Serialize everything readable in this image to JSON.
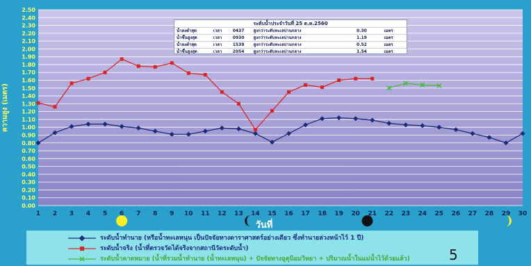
{
  "chart_data": {
    "type": "line",
    "title": "",
    "xlabel": "วันที่",
    "ylabel": "ความสูง (เมตร)",
    "ylim": [
      0,
      2.5
    ],
    "yticks": [
      "0.00",
      "0.10",
      "0.20",
      "0.30",
      "0.40",
      "0.50",
      "0.60",
      "0.70",
      "0.80",
      "0.90",
      "1.00",
      "1.10",
      "1.20",
      "1.30",
      "1.40",
      "1.50",
      "1.60",
      "1.70",
      "1.80",
      "1.90",
      "2.00",
      "2.10",
      "2.20",
      "2.30",
      "2.40",
      "2.50"
    ],
    "categories": [
      "1",
      "2",
      "3",
      "4",
      "5",
      "6",
      "7",
      "8",
      "9",
      "10",
      "11",
      "12",
      "13",
      "14",
      "15",
      "16",
      "17",
      "18",
      "19",
      "20",
      "21",
      "22",
      "23",
      "24",
      "25",
      "26",
      "27",
      "28",
      "29",
      "30"
    ],
    "grid": true,
    "legend_position": "bottom",
    "series": [
      {
        "name": "ระดับน้ำทำนาย (หรือน้ำทะเลหนุน เป็นปัจจัยทางดาราศาสตร์อย่างเดียว ซึ่งทำนายล่วงหน้าไว้ 1 ปี)",
        "color": "#1a2a7a",
        "marker": "diamond",
        "x": [
          1,
          2,
          3,
          4,
          5,
          6,
          7,
          8,
          9,
          10,
          11,
          12,
          13,
          14,
          15,
          16,
          17,
          18,
          19,
          20,
          21,
          22,
          23,
          24,
          25,
          26,
          27,
          28,
          29,
          30
        ],
        "values": [
          0.8,
          0.93,
          1.01,
          1.04,
          1.04,
          1.01,
          0.99,
          0.95,
          0.91,
          0.91,
          0.95,
          0.99,
          0.98,
          0.92,
          0.81,
          0.92,
          1.03,
          1.11,
          1.12,
          1.11,
          1.09,
          1.05,
          1.03,
          1.02,
          1.0,
          0.97,
          0.92,
          0.87,
          0.8,
          0.92
        ]
      },
      {
        "name": "ระดับน้ำจริง (น้ำที่ตรวจวัดได้จริงจากสถานีวัดระดับน้ำ)",
        "color": "#dd2222",
        "marker": "square",
        "x": [
          1,
          2,
          3,
          4,
          5,
          6,
          7,
          8,
          9,
          10,
          11,
          12,
          13,
          14,
          15,
          16,
          17,
          18,
          19,
          20,
          21
        ],
        "values": [
          1.31,
          1.26,
          1.56,
          1.62,
          1.7,
          1.87,
          1.78,
          1.77,
          1.82,
          1.69,
          1.67,
          1.45,
          1.3,
          0.97,
          1.21,
          1.45,
          1.54,
          1.51,
          1.6,
          1.62,
          1.62
        ]
      },
      {
        "name": "ระดับน้ำคาดหมาย (น้ำที่รวมน้ำทำนาย (น้ำทะเลหนุน) + ปัจจัยทางอุตุนิยมวิทยา + ปริมาณน้ำในแม่น้ำไว้ด้วยแล้ว)",
        "color": "#44bb33",
        "marker": "x",
        "x": [
          22,
          23,
          24,
          25
        ],
        "values": [
          1.5,
          1.56,
          1.54,
          1.53
        ]
      }
    ],
    "moon_phases": [
      {
        "day": 6,
        "phase": "full"
      },
      {
        "day": 13.7,
        "phase": "first-quarter"
      },
      {
        "day": 20.7,
        "phase": "new"
      },
      {
        "day": 29,
        "phase": "last-quarter"
      }
    ],
    "colors": {
      "plot_bg_top": "#ccc6ec",
      "plot_bg_bottom": "#8a84c8",
      "grid": "#ffffff",
      "axis_text": "#ffff66",
      "page_bg": "#2aa0cc"
    }
  },
  "info_table": {
    "title": "ระดับน้ำประจำวันที่ 25 ต.ค.2560",
    "rows": [
      [
        "น้ำลงต่ำสุด",
        "เวลา",
        "0437",
        "สูงกว่าระดับทะเลปานกลาง",
        "0.30",
        "เมตร"
      ],
      [
        "น้ำขึ้นสูงสุด",
        "เวลา",
        "0930",
        "สูงกว่าระดับทะเลปานกลาง",
        "1.19",
        "เมตร"
      ],
      [
        "น้ำลงต่ำสุด",
        "เวลา",
        "1539",
        "สูงกว่าระดับทะเลปานกลาง",
        "0.52",
        "เมตร"
      ],
      [
        "น้ำขึ้นสูงสุด",
        "เวลา",
        "2054",
        "สูงกว่าระดับทะเลปานกลาง",
        "1.54",
        "เมตร"
      ]
    ]
  },
  "page_number": "5"
}
